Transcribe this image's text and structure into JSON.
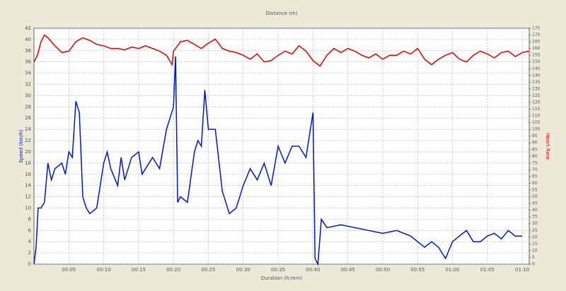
{
  "chart_data": {
    "type": "line",
    "title": "Distance (m)",
    "xlabel": "Duration (h:mm)",
    "ylabel": "Speed (km/h)",
    "y2label": "Heart Rate",
    "grid": true,
    "xlim": [
      0,
      71
    ],
    "xticks": [
      {
        "value": 5,
        "label": "00:05"
      },
      {
        "value": 10,
        "label": "00:10"
      },
      {
        "value": 15,
        "label": "00:15"
      },
      {
        "value": 20,
        "label": "00:20"
      },
      {
        "value": 25,
        "label": "00:25"
      },
      {
        "value": 30,
        "label": "00:30"
      },
      {
        "value": 35,
        "label": "00:35"
      },
      {
        "value": 40,
        "label": "00:40"
      },
      {
        "value": 45,
        "label": "00:45"
      },
      {
        "value": 50,
        "label": "00:50"
      },
      {
        "value": 55,
        "label": "00:55"
      },
      {
        "value": 60,
        "label": "01:00"
      },
      {
        "value": 65,
        "label": "01:05"
      },
      {
        "value": 70,
        "label": "01:10"
      }
    ],
    "ylim": [
      0,
      42
    ],
    "yticks": [
      0,
      2,
      4,
      6,
      8,
      10,
      12,
      14,
      16,
      18,
      20,
      22,
      24,
      26,
      28,
      30,
      32,
      34,
      36,
      38,
      40,
      42
    ],
    "y2lim": [
      0,
      175
    ],
    "y2ticks": [
      0,
      5,
      10,
      15,
      20,
      25,
      30,
      35,
      40,
      45,
      50,
      55,
      60,
      65,
      70,
      75,
      80,
      85,
      90,
      95,
      100,
      105,
      110,
      115,
      120,
      125,
      130,
      135,
      140,
      145,
      150,
      155,
      160,
      165,
      170,
      175
    ],
    "series": [
      {
        "name": "Speed",
        "color": "#0018c8",
        "axis": "y",
        "x": [
          0,
          0.3,
          0.6,
          1,
          1.5,
          2,
          2.5,
          3,
          4,
          4.5,
          5,
          5.5,
          6,
          6.5,
          7,
          7.5,
          8,
          9,
          10,
          10.5,
          11,
          12,
          12.5,
          13,
          14,
          15,
          15.5,
          16,
          17,
          18,
          19,
          19.5,
          20,
          20.3,
          20.6,
          21,
          22,
          23,
          23.5,
          24,
          24.5,
          25,
          26,
          27,
          28,
          29,
          30,
          31,
          32,
          33,
          34,
          35,
          36,
          37,
          38,
          39,
          40,
          40.3,
          40.7,
          41.2,
          42,
          44,
          46,
          48,
          50,
          52,
          54,
          55,
          56,
          57,
          58,
          59,
          60,
          61,
          62,
          63,
          64,
          65,
          66,
          67,
          68,
          69,
          70
        ],
        "values": [
          0,
          3,
          10,
          10,
          11,
          18,
          15,
          17,
          18,
          16,
          20,
          19,
          29,
          27,
          12,
          10,
          9,
          10,
          18,
          20,
          17,
          14,
          19,
          15,
          19,
          20,
          16,
          17,
          19,
          17,
          24,
          26,
          28,
          37,
          11,
          12,
          11,
          20,
          22,
          21,
          31,
          24,
          24,
          13,
          9,
          10,
          14,
          17,
          15,
          18,
          14,
          21,
          18,
          21,
          21,
          19,
          27,
          1,
          0,
          8,
          6.5,
          7,
          6.5,
          6,
          5.5,
          6,
          5,
          4,
          3,
          4,
          3,
          1,
          4,
          5,
          6,
          4,
          4,
          5,
          5.5,
          4.5,
          6,
          5,
          5
        ]
      },
      {
        "name": "Heart Rate",
        "color": "#e00000",
        "axis": "y2",
        "x": [
          0,
          0.5,
          1,
          1.5,
          2,
          3,
          4,
          5,
          6,
          7,
          8,
          9,
          10,
          11,
          12,
          13,
          14,
          15,
          16,
          17,
          18,
          19,
          19.8,
          20,
          21,
          22,
          23,
          24,
          25,
          26,
          27,
          28,
          29,
          30,
          31,
          32,
          33,
          34,
          35,
          36,
          37,
          38,
          39,
          40,
          41,
          42,
          43,
          44,
          45,
          46,
          47,
          48,
          49,
          50,
          51,
          52,
          53,
          54,
          55,
          56,
          57,
          58,
          59,
          60,
          61,
          62,
          63,
          64,
          65,
          66,
          67,
          68,
          69,
          70,
          71
        ],
        "values": [
          150,
          155,
          165,
          170,
          168,
          162,
          157,
          158,
          165,
          168,
          166,
          163,
          162,
          160,
          160,
          159,
          161,
          160,
          162,
          160,
          158,
          155,
          148,
          158,
          165,
          166,
          163,
          160,
          164,
          167,
          160,
          158,
          157,
          155,
          152,
          156,
          150,
          151,
          155,
          158,
          156,
          162,
          158,
          151,
          147,
          155,
          160,
          157,
          160,
          158,
          155,
          153,
          156,
          152,
          155,
          155,
          158,
          156,
          160,
          152,
          148,
          152,
          155,
          157,
          152,
          150,
          155,
          158,
          156,
          153,
          157,
          158,
          154,
          157,
          158
        ]
      }
    ]
  }
}
